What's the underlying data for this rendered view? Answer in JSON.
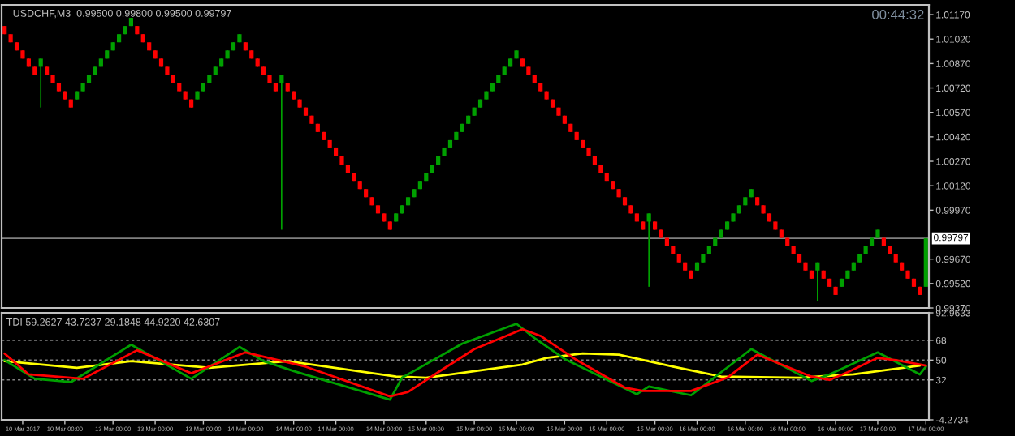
{
  "chart_data": [
    {
      "type": "candlestick",
      "title": "USDCHF,M3  0.99500 0.99800 0.99500 0.99797",
      "annotations": [
        "00:44:32"
      ],
      "colors": [
        "#ff0000",
        "#ff0000",
        "#ff0000",
        "#ff0000",
        "#ff0000",
        "#ff0000",
        "#00a000",
        "#ff0000",
        "#ff0000",
        "#ff0000",
        "#ff0000",
        "#ff0000",
        "#00a000",
        "#00a000",
        "#00a000",
        "#00a000",
        "#00a000",
        "#00a000",
        "#00a000",
        "#00a000",
        "#00a000",
        "#00a000",
        "#ff0000",
        "#ff0000",
        "#ff0000",
        "#ff0000",
        "#ff0000",
        "#ff0000",
        "#ff0000",
        "#ff0000",
        "#ff0000",
        "#ff0000",
        "#00a000",
        "#00a000",
        "#00a000",
        "#00a000",
        "#00a000",
        "#00a000",
        "#00a000",
        "#00a000",
        "#ff0000",
        "#ff0000",
        "#ff0000",
        "#ff0000",
        "#ff0000",
        "#ff0000",
        "#00a000",
        "#ff0000",
        "#ff0000",
        "#ff0000",
        "#ff0000",
        "#ff0000",
        "#ff0000",
        "#ff0000",
        "#ff0000",
        "#ff0000",
        "#ff0000",
        "#ff0000",
        "#ff0000",
        "#ff0000",
        "#ff0000",
        "#ff0000",
        "#ff0000",
        "#ff0000",
        "#ff0000",
        "#00a000",
        "#00a000",
        "#00a000",
        "#00a000",
        "#00a000",
        "#00a000",
        "#00a000",
        "#00a000",
        "#00a000",
        "#00a000",
        "#00a000",
        "#00a000",
        "#00a000",
        "#00a000",
        "#00a000",
        "#00a000",
        "#00a000",
        "#00a000",
        "#00a000",
        "#00a000",
        "#00a000",
        "#ff0000",
        "#ff0000",
        "#ff0000",
        "#ff0000",
        "#ff0000",
        "#ff0000",
        "#ff0000",
        "#ff0000",
        "#ff0000",
        "#ff0000",
        "#ff0000",
        "#ff0000",
        "#ff0000",
        "#ff0000",
        "#ff0000",
        "#ff0000",
        "#ff0000",
        "#ff0000",
        "#ff0000",
        "#ff0000",
        "#ff0000",
        "#00a000",
        "#ff0000",
        "#ff0000",
        "#ff0000",
        "#ff0000",
        "#ff0000",
        "#ff0000",
        "#ff0000",
        "#00a000",
        "#00a000",
        "#00a000",
        "#00a000",
        "#00a000",
        "#00a000",
        "#00a000",
        "#00a000",
        "#00a000",
        "#00a000",
        "#ff0000",
        "#ff0000",
        "#ff0000",
        "#ff0000",
        "#ff0000",
        "#ff0000",
        "#ff0000",
        "#ff0000",
        "#ff0000",
        "#ff0000",
        "#00a000",
        "#ff0000",
        "#ff0000",
        "#ff0000",
        "#00a000",
        "#00a000",
        "#00a000",
        "#00a000",
        "#00a000",
        "#00a000",
        "#00a000",
        "#ff0000",
        "#ff0000",
        "#ff0000",
        "#ff0000",
        "#ff0000",
        "#ff0000",
        "#ff0000",
        "#00a000"
      ],
      "ohlc": [
        [
          1.011,
          1.011,
          1.0105,
          1.0105
        ],
        [
          1.0105,
          1.0105,
          1.01,
          1.01
        ],
        [
          1.01,
          1.01,
          1.0095,
          1.0095
        ],
        [
          1.0095,
          1.0095,
          1.009,
          1.009
        ],
        [
          1.009,
          1.009,
          1.0085,
          1.0085
        ],
        [
          1.0085,
          1.0085,
          1.008,
          1.008
        ],
        [
          1.0085,
          1.009,
          1.006,
          1.009
        ],
        [
          1.0085,
          1.0085,
          1.008,
          1.008
        ],
        [
          1.008,
          1.008,
          1.0075,
          1.0075
        ],
        [
          1.0075,
          1.0075,
          1.007,
          1.007
        ],
        [
          1.007,
          1.007,
          1.0065,
          1.0065
        ],
        [
          1.0065,
          1.0065,
          1.006,
          1.006
        ],
        [
          1.0065,
          1.007,
          1.0065,
          1.007
        ],
        [
          1.007,
          1.0075,
          1.007,
          1.0075
        ],
        [
          1.0075,
          1.008,
          1.0075,
          1.008
        ],
        [
          1.008,
          1.0085,
          1.008,
          1.0085
        ],
        [
          1.0085,
          1.009,
          1.0085,
          1.009
        ],
        [
          1.009,
          1.0095,
          1.009,
          1.0095
        ],
        [
          1.0095,
          1.01,
          1.0095,
          1.01
        ],
        [
          1.01,
          1.0105,
          1.01,
          1.0105
        ],
        [
          1.0105,
          1.011,
          1.0105,
          1.011
        ],
        [
          1.011,
          1.0115,
          1.011,
          1.0115
        ],
        [
          1.011,
          1.011,
          1.0105,
          1.0105
        ],
        [
          1.0105,
          1.0105,
          1.01,
          1.01
        ],
        [
          1.01,
          1.01,
          1.0095,
          1.0095
        ],
        [
          1.0095,
          1.0095,
          1.009,
          1.009
        ],
        [
          1.009,
          1.009,
          1.0085,
          1.0085
        ],
        [
          1.0085,
          1.0085,
          1.008,
          1.008
        ],
        [
          1.008,
          1.008,
          1.0075,
          1.0075
        ],
        [
          1.0075,
          1.0075,
          1.007,
          1.007
        ],
        [
          1.007,
          1.007,
          1.0065,
          1.0065
        ],
        [
          1.0065,
          1.0065,
          1.006,
          1.006
        ],
        [
          1.0065,
          1.007,
          1.0065,
          1.007
        ],
        [
          1.007,
          1.0075,
          1.007,
          1.0075
        ],
        [
          1.0075,
          1.008,
          1.0075,
          1.008
        ],
        [
          1.008,
          1.0085,
          1.008,
          1.0085
        ],
        [
          1.0085,
          1.009,
          1.0085,
          1.009
        ],
        [
          1.009,
          1.0095,
          1.009,
          1.0095
        ],
        [
          1.0095,
          1.01,
          1.0095,
          1.01
        ],
        [
          1.01,
          1.0105,
          1.01,
          1.0105
        ],
        [
          1.01,
          1.01,
          1.0095,
          1.0095
        ],
        [
          1.0095,
          1.0095,
          1.009,
          1.009
        ],
        [
          1.009,
          1.009,
          1.0085,
          1.0085
        ],
        [
          1.0085,
          1.0085,
          1.008,
          1.008
        ],
        [
          1.008,
          1.008,
          1.0075,
          1.0075
        ],
        [
          1.0075,
          1.0075,
          1.007,
          1.007
        ],
        [
          1.0075,
          1.008,
          0.9985,
          1.008
        ],
        [
          1.0075,
          1.0075,
          1.007,
          1.007
        ],
        [
          1.007,
          1.007,
          1.0065,
          1.0065
        ],
        [
          1.0065,
          1.0065,
          1.006,
          1.006
        ],
        [
          1.006,
          1.006,
          1.0055,
          1.0055
        ],
        [
          1.0055,
          1.0055,
          1.005,
          1.005
        ],
        [
          1.005,
          1.005,
          1.0045,
          1.0045
        ],
        [
          1.0045,
          1.0045,
          1.004,
          1.004
        ],
        [
          1.004,
          1.004,
          1.0035,
          1.0035
        ],
        [
          1.0035,
          1.0035,
          1.003,
          1.003
        ],
        [
          1.003,
          1.003,
          1.0025,
          1.0025
        ],
        [
          1.0025,
          1.0025,
          1.002,
          1.002
        ],
        [
          1.002,
          1.002,
          1.0015,
          1.0015
        ],
        [
          1.0015,
          1.0015,
          1.001,
          1.001
        ],
        [
          1.001,
          1.001,
          1.0005,
          1.0005
        ],
        [
          1.0005,
          1.0005,
          1.0,
          1.0
        ],
        [
          1.0,
          1.0,
          0.9995,
          0.9995
        ],
        [
          0.9995,
          0.9995,
          0.999,
          0.999
        ],
        [
          0.999,
          0.999,
          0.9985,
          0.9985
        ],
        [
          0.999,
          0.9995,
          0.999,
          0.9995
        ],
        [
          0.9995,
          1.0,
          0.9995,
          1.0
        ],
        [
          1.0,
          1.0005,
          1.0,
          1.0005
        ],
        [
          1.0005,
          1.001,
          1.0005,
          1.001
        ],
        [
          1.001,
          1.0015,
          1.001,
          1.0015
        ],
        [
          1.0015,
          1.002,
          1.0015,
          1.002
        ],
        [
          1.002,
          1.0025,
          1.002,
          1.0025
        ],
        [
          1.0025,
          1.003,
          1.0025,
          1.003
        ],
        [
          1.003,
          1.0035,
          1.003,
          1.0035
        ],
        [
          1.0035,
          1.004,
          1.0035,
          1.004
        ],
        [
          1.004,
          1.0045,
          1.004,
          1.0045
        ],
        [
          1.0045,
          1.005,
          1.0045,
          1.005
        ],
        [
          1.005,
          1.0055,
          1.005,
          1.0055
        ],
        [
          1.0055,
          1.006,
          1.0055,
          1.006
        ],
        [
          1.006,
          1.0065,
          1.006,
          1.0065
        ],
        [
          1.0065,
          1.007,
          1.0065,
          1.007
        ],
        [
          1.007,
          1.0075,
          1.007,
          1.0075
        ],
        [
          1.0075,
          1.008,
          1.0075,
          1.008
        ],
        [
          1.008,
          1.0085,
          1.008,
          1.0085
        ],
        [
          1.0085,
          1.009,
          1.0085,
          1.009
        ],
        [
          1.009,
          1.0095,
          1.009,
          1.0095
        ],
        [
          1.009,
          1.009,
          1.0085,
          1.0085
        ],
        [
          1.0085,
          1.0085,
          1.008,
          1.008
        ],
        [
          1.008,
          1.008,
          1.0075,
          1.0075
        ],
        [
          1.0075,
          1.0075,
          1.007,
          1.007
        ],
        [
          1.007,
          1.007,
          1.0065,
          1.0065
        ],
        [
          1.0065,
          1.0065,
          1.006,
          1.006
        ],
        [
          1.006,
          1.006,
          1.0055,
          1.0055
        ],
        [
          1.0055,
          1.0055,
          1.005,
          1.005
        ],
        [
          1.005,
          1.005,
          1.0045,
          1.0045
        ],
        [
          1.0045,
          1.0045,
          1.004,
          1.004
        ],
        [
          1.004,
          1.004,
          1.0035,
          1.0035
        ],
        [
          1.0035,
          1.0035,
          1.003,
          1.003
        ],
        [
          1.003,
          1.003,
          1.0025,
          1.0025
        ],
        [
          1.0025,
          1.0025,
          1.002,
          1.002
        ],
        [
          1.002,
          1.002,
          1.0015,
          1.0015
        ],
        [
          1.0015,
          1.0015,
          1.001,
          1.001
        ],
        [
          1.001,
          1.001,
          1.0005,
          1.0005
        ],
        [
          1.0005,
          1.0005,
          1.0,
          1.0
        ],
        [
          1.0,
          1.0,
          0.9995,
          0.9995
        ],
        [
          0.9995,
          0.9995,
          0.999,
          0.999
        ],
        [
          0.999,
          0.999,
          0.9985,
          0.9985
        ],
        [
          0.999,
          0.9995,
          0.995,
          0.9995
        ],
        [
          0.999,
          0.999,
          0.9985,
          0.9985
        ],
        [
          0.9985,
          0.9985,
          0.998,
          0.998
        ],
        [
          0.998,
          0.998,
          0.9975,
          0.9975
        ],
        [
          0.9975,
          0.9975,
          0.997,
          0.997
        ],
        [
          0.997,
          0.997,
          0.9965,
          0.9965
        ],
        [
          0.9965,
          0.9965,
          0.996,
          0.996
        ],
        [
          0.996,
          0.996,
          0.9955,
          0.9955
        ],
        [
          0.996,
          0.9965,
          0.996,
          0.9965
        ],
        [
          0.9965,
          0.997,
          0.9965,
          0.997
        ],
        [
          0.997,
          0.9975,
          0.997,
          0.9975
        ],
        [
          0.9975,
          0.998,
          0.9975,
          0.998
        ],
        [
          0.998,
          0.9985,
          0.998,
          0.9985
        ],
        [
          0.9985,
          0.999,
          0.9985,
          0.999
        ],
        [
          0.999,
          0.9995,
          0.999,
          0.9995
        ],
        [
          0.9995,
          1.0,
          0.9995,
          1.0
        ],
        [
          1.0,
          1.0005,
          1.0,
          1.0005
        ],
        [
          1.0005,
          1.001,
          1.0005,
          1.001
        ],
        [
          1.0005,
          1.0005,
          1.0,
          1.0
        ],
        [
          1.0,
          1.0,
          0.9995,
          0.9995
        ],
        [
          0.9995,
          0.9995,
          0.999,
          0.999
        ],
        [
          0.999,
          0.999,
          0.9985,
          0.9985
        ],
        [
          0.9985,
          0.9985,
          0.998,
          0.998
        ],
        [
          0.998,
          0.998,
          0.9975,
          0.9975
        ],
        [
          0.9975,
          0.9975,
          0.997,
          0.997
        ],
        [
          0.997,
          0.997,
          0.9965,
          0.9965
        ],
        [
          0.9965,
          0.9965,
          0.996,
          0.996
        ],
        [
          0.996,
          0.996,
          0.9955,
          0.9955
        ],
        [
          0.996,
          0.9965,
          0.9941,
          0.9965
        ],
        [
          0.996,
          0.996,
          0.9955,
          0.9955
        ],
        [
          0.9955,
          0.9955,
          0.995,
          0.995
        ],
        [
          0.995,
          0.995,
          0.9945,
          0.9945
        ],
        [
          0.995,
          0.9955,
          0.995,
          0.9955
        ],
        [
          0.9955,
          0.996,
          0.9955,
          0.996
        ],
        [
          0.996,
          0.9965,
          0.996,
          0.9965
        ],
        [
          0.9965,
          0.997,
          0.9965,
          0.997
        ],
        [
          0.997,
          0.9975,
          0.997,
          0.9975
        ],
        [
          0.9975,
          0.998,
          0.9975,
          0.998
        ],
        [
          0.998,
          0.9985,
          0.998,
          0.9985
        ],
        [
          0.998,
          0.998,
          0.9975,
          0.9975
        ],
        [
          0.9975,
          0.9975,
          0.997,
          0.997
        ],
        [
          0.997,
          0.997,
          0.9965,
          0.9965
        ],
        [
          0.9965,
          0.9965,
          0.996,
          0.996
        ],
        [
          0.996,
          0.996,
          0.9955,
          0.9955
        ],
        [
          0.9955,
          0.9955,
          0.995,
          0.995
        ],
        [
          0.995,
          0.995,
          0.9945,
          0.9945
        ],
        [
          0.995,
          0.998,
          0.995,
          0.99797
        ]
      ],
      "ylim": [
        0.9937,
        1.0123
      ],
      "yticks": [
        {
          "value": 1.0117,
          "label": "1.01170"
        },
        {
          "value": 1.0102,
          "label": "1.01020"
        },
        {
          "value": 1.0087,
          "label": "1.00870"
        },
        {
          "value": 1.0072,
          "label": "1.00720"
        },
        {
          "value": 1.0057,
          "label": "1.00570"
        },
        {
          "value": 1.0042,
          "label": "1.00420"
        },
        {
          "value": 1.0027,
          "label": "1.00270"
        },
        {
          "value": 1.0012,
          "label": "1.00120"
        },
        {
          "value": 0.9997,
          "label": "0.99970"
        },
        {
          "value": 0.9967,
          "label": "0.99670"
        },
        {
          "value": 0.9952,
          "label": "0.99520"
        },
        {
          "value": 0.9937,
          "label": "0.99370"
        }
      ],
      "ref_lines": [
        {
          "axis": "y",
          "value": 0.99797,
          "label": "0.99797",
          "color": "#808080"
        }
      ],
      "tick_labels": "y"
    },
    {
      "type": "line",
      "annotations": [
        "TDI 59.2627 43.7237 29.1848 44.9220 42.6307"
      ],
      "categories": [
        null,
        null,
        null,
        "10 Mar 2017",
        null,
        null,
        null,
        null,
        null,
        null,
        "10 Mar 00:00",
        null,
        null,
        null,
        null,
        null,
        null,
        null,
        "13 Mar 00:00",
        null,
        null,
        null,
        null,
        null,
        null,
        "13 Mar 00:00",
        null,
        null,
        null,
        null,
        null,
        null,
        null,
        "13 Mar 00:00",
        null,
        null,
        null,
        null,
        null,
        null,
        "14 Mar 00:00",
        null,
        null,
        null,
        null,
        null,
        null,
        null,
        "14 Mar 00:00",
        null,
        null,
        null,
        null,
        null,
        null,
        "14 Mar 00:00",
        null,
        null,
        null,
        null,
        null,
        null,
        null,
        "14 Mar 00:00",
        null,
        null,
        null,
        null,
        null,
        null,
        "15 Mar 00:00",
        null,
        null,
        null,
        null,
        null,
        null,
        null,
        "15 Mar 00:00",
        null,
        null,
        null,
        null,
        null,
        null,
        "15 Mar 00:00",
        null,
        null,
        null,
        null,
        null,
        null,
        null,
        "15 Mar 00:00",
        null,
        null,
        null,
        null,
        null,
        null,
        "15 Mar 00:00",
        null,
        null,
        null,
        null,
        null,
        null,
        null,
        "15 Mar 00:00",
        null,
        null,
        null,
        null,
        null,
        null,
        "16 Mar 00:00",
        null,
        null,
        null,
        null,
        null,
        null,
        null,
        "16 Mar 00:00",
        null,
        null,
        null,
        null,
        null,
        null,
        "16 Mar 00:00",
        null,
        null,
        null,
        null,
        null,
        null,
        null,
        "16 Mar 00:00",
        null,
        null,
        null,
        null,
        null,
        null,
        "17 Mar 00:00",
        null,
        null,
        null,
        null,
        null,
        null,
        null,
        "17 Mar 00:00"
      ],
      "ylim": [
        -4.2734,
        92.9633
      ],
      "yticks": [
        {
          "value": 92.9633,
          "label": "92.9633"
        },
        68,
        50,
        32,
        {
          "value": -4.2734,
          "label": "-4.2734"
        }
      ],
      "ref_lines": [
        {
          "axis": "y",
          "value": 68,
          "label": null,
          "color": "#808080",
          "line_style": "dashed"
        },
        {
          "axis": "y",
          "value": 50,
          "label": null,
          "color": "#808080",
          "line_style": "dashed"
        },
        {
          "axis": "y",
          "value": 32,
          "label": null,
          "color": "#808080",
          "line_style": "dashed"
        }
      ],
      "series": [
        {
          "color": "#ffff00",
          "values": [
            49,
            null,
            null,
            null,
            null,
            null,
            null,
            null,
            null,
            null,
            null,
            null,
            43,
            null,
            null,
            null,
            null,
            null,
            null,
            null,
            null,
            49,
            null,
            null,
            null,
            null,
            null,
            null,
            null,
            null,
            null,
            null,
            null,
            null,
            43,
            null,
            null,
            null,
            null,
            null,
            null,
            null,
            null,
            null,
            null,
            null,
            null,
            49,
            null,
            null,
            null,
            null,
            null,
            null,
            null,
            null,
            null,
            null,
            null,
            null,
            null,
            null,
            null,
            null,
            null,
            35,
            null,
            null,
            null,
            null,
            34,
            null,
            null,
            null,
            null,
            null,
            null,
            null,
            null,
            null,
            null,
            null,
            null,
            null,
            null,
            null,
            46,
            null,
            null,
            null,
            52,
            null,
            null,
            null,
            null,
            null,
            56,
            null,
            null,
            null,
            null,
            null,
            55,
            null,
            null,
            null,
            null,
            null,
            null,
            null,
            null,
            44,
            null,
            null,
            null,
            null,
            null,
            null,
            null,
            35,
            null,
            null,
            null,
            null,
            null,
            null,
            null,
            null,
            null,
            null,
            null,
            null,
            34,
            null,
            null,
            null,
            null,
            null,
            null,
            null,
            null,
            37,
            null,
            null,
            null,
            null,
            null,
            null,
            null,
            null,
            null,
            null,
            45,
            null
          ]
        },
        {
          "color": "#00a000",
          "values": [
            50,
            null,
            null,
            null,
            null,
            33,
            null,
            null,
            null,
            null,
            null,
            30,
            null,
            null,
            null,
            null,
            null,
            null,
            null,
            null,
            null,
            64,
            null,
            null,
            null,
            null,
            null,
            null,
            null,
            null,
            null,
            33,
            null,
            null,
            null,
            null,
            null,
            null,
            null,
            62,
            null,
            null,
            null,
            49,
            null,
            null,
            null,
            null,
            40,
            null,
            null,
            null,
            null,
            null,
            null,
            null,
            null,
            null,
            null,
            null,
            null,
            null,
            null,
            null,
            14,
            null,
            34,
            null,
            null,
            null,
            null,
            null,
            null,
            null,
            null,
            null,
            65,
            null,
            null,
            null,
            null,
            null,
            null,
            null,
            null,
            83,
            null,
            null,
            70,
            null,
            null,
            null,
            null,
            51,
            null,
            null,
            null,
            null,
            null,
            null,
            null,
            null,
            null,
            null,
            null,
            19,
            null,
            26,
            null,
            null,
            null,
            null,
            null,
            null,
            18,
            null,
            null,
            null,
            null,
            null,
            null,
            null,
            null,
            null,
            60,
            null,
            null,
            null,
            null,
            null,
            null,
            null,
            null,
            null,
            31,
            null,
            null,
            37,
            null,
            null,
            null,
            null,
            null,
            null,
            null,
            57,
            null,
            null,
            null,
            null,
            null,
            null,
            37,
            44
          ]
        },
        {
          "color": "#ff0000",
          "values": [
            56,
            null,
            null,
            null,
            37,
            null,
            null,
            null,
            null,
            null,
            null,
            null,
            null,
            33,
            null,
            null,
            null,
            null,
            null,
            null,
            null,
            null,
            59,
            null,
            null,
            null,
            null,
            null,
            null,
            null,
            null,
            38,
            null,
            null,
            null,
            null,
            null,
            null,
            null,
            null,
            57,
            null,
            null,
            null,
            null,
            null,
            null,
            null,
            null,
            null,
            44,
            null,
            null,
            null,
            null,
            null,
            null,
            null,
            null,
            null,
            null,
            null,
            null,
            null,
            17,
            null,
            null,
            21,
            null,
            null,
            null,
            null,
            39,
            null,
            null,
            null,
            null,
            null,
            60,
            null,
            null,
            null,
            null,
            null,
            null,
            null,
            78,
            null,
            null,
            72,
            null,
            null,
            null,
            null,
            null,
            50,
            null,
            null,
            null,
            null,
            null,
            null,
            null,
            25,
            null,
            null,
            22,
            null,
            null,
            null,
            null,
            null,
            null,
            null,
            22,
            null,
            26,
            null,
            null,
            null,
            34,
            null,
            null,
            null,
            null,
            55,
            null,
            null,
            null,
            46,
            null,
            null,
            null,
            null,
            35,
            null,
            null,
            32,
            null,
            null,
            39,
            null,
            null,
            null,
            null,
            52,
            null,
            null,
            50,
            null,
            null,
            null,
            null,
            45
          ]
        }
      ]
    }
  ]
}
